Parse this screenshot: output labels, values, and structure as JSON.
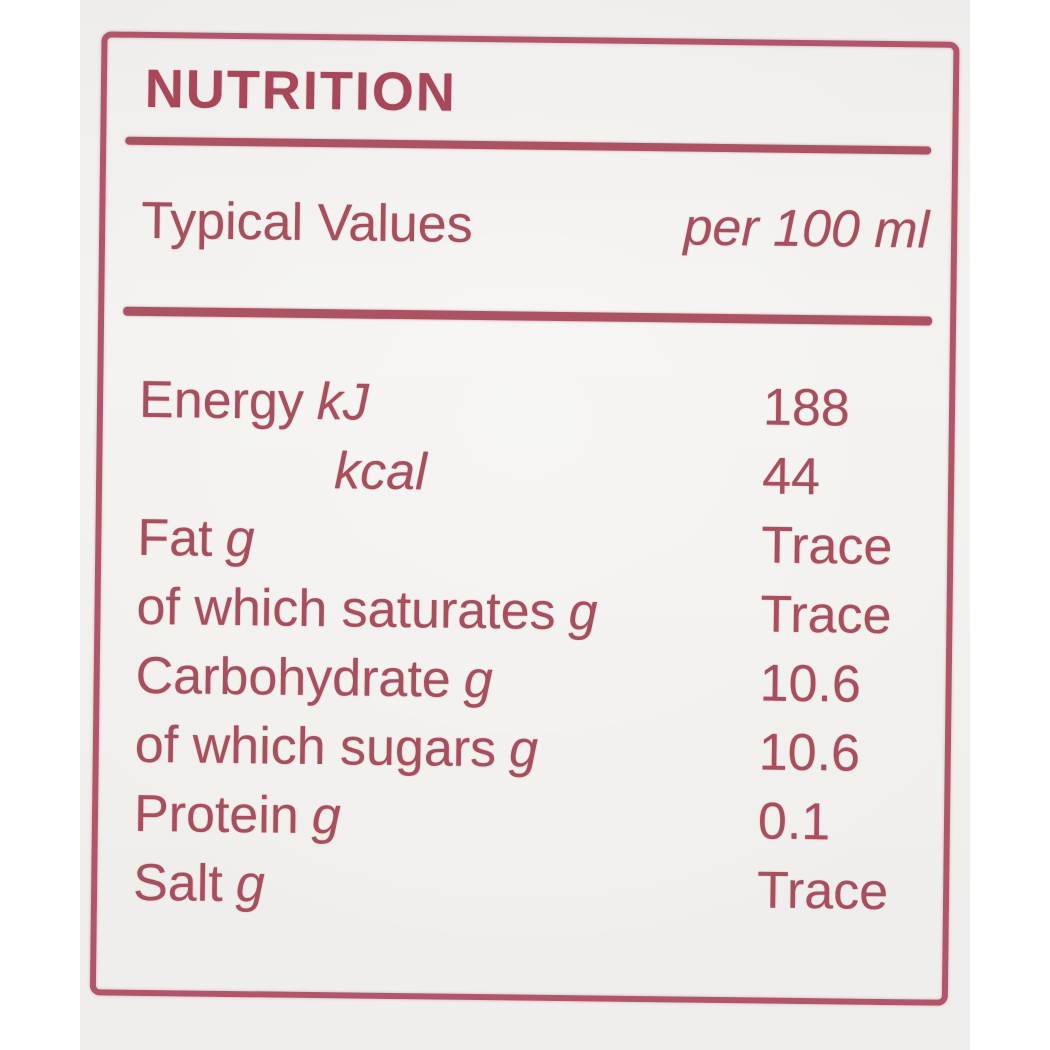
{
  "label": {
    "title": "NUTRITION",
    "header": {
      "name_column": "Typical Values",
      "amount_column": "per 100 ml"
    },
    "rows": [
      {
        "name": "Energy",
        "unit": "kJ",
        "value": "188"
      },
      {
        "name": "",
        "unit": "kcal",
        "value": "44"
      },
      {
        "name": "Fat",
        "unit": "g",
        "value": "Trace"
      },
      {
        "name": "of which saturates",
        "unit": "g",
        "value": "Trace"
      },
      {
        "name": "Carbohydrate",
        "unit": "g",
        "value": "10.6"
      },
      {
        "name": "of which sugars",
        "unit": "g",
        "value": "10.6"
      },
      {
        "name": "Protein",
        "unit": "g",
        "value": "0.1"
      },
      {
        "name": "Salt",
        "unit": "g",
        "value": "Trace"
      }
    ],
    "colors": {
      "ink": "#a84f5e",
      "title_ink": "#a8465a",
      "rule": "#ab5263",
      "frame": "#b15669",
      "photo_background": "#f1efec",
      "page_background": "#ffffff"
    }
  }
}
